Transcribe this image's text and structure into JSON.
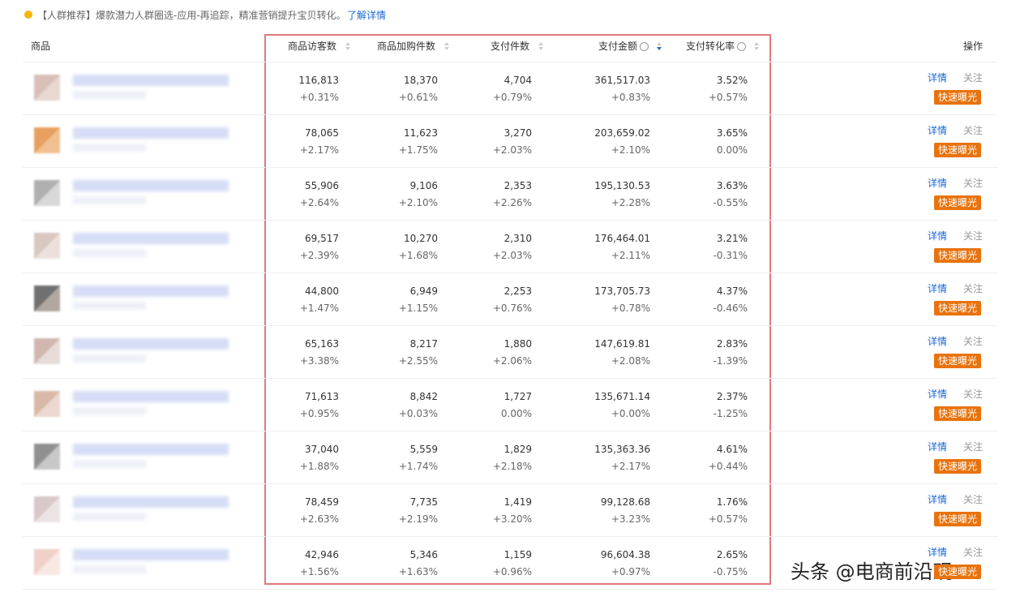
{
  "notice": {
    "text": "【人群推荐】爆款潜力人群圈选-应用-再追踪，精准营销提升宝贝转化。",
    "link": "了解详情"
  },
  "table": {
    "headers": [
      "商品",
      "商品访客数",
      "商品加购件数",
      "支付件数",
      "支付金额",
      "支付转化率",
      "操作"
    ],
    "actions": [
      "详情",
      "关注",
      "快速曝光"
    ],
    "rows": [
      [
        [
          "116,813",
          "+0.31%"
        ],
        [
          "18,370",
          "+0.61%"
        ],
        [
          "4,704",
          "+0.79%"
        ],
        [
          "361,517.03",
          "+0.83%"
        ],
        [
          "3.52%",
          "+0.57%"
        ]
      ],
      [
        [
          "78,065",
          "+2.17%"
        ],
        [
          "11,623",
          "+1.75%"
        ],
        [
          "3,270",
          "+2.03%"
        ],
        [
          "203,659.02",
          "+2.10%"
        ],
        [
          "3.65%",
          "0.00%"
        ]
      ],
      [
        [
          "55,906",
          "+2.64%"
        ],
        [
          "9,106",
          "+2.10%"
        ],
        [
          "2,353",
          "+2.26%"
        ],
        [
          "195,130.53",
          "+2.28%"
        ],
        [
          "3.63%",
          "-0.55%"
        ]
      ],
      [
        [
          "69,517",
          "+2.39%"
        ],
        [
          "10,270",
          "+1.68%"
        ],
        [
          "2,310",
          "+2.03%"
        ],
        [
          "176,464.01",
          "+2.11%"
        ],
        [
          "3.21%",
          "-0.31%"
        ]
      ],
      [
        [
          "44,800",
          "+1.47%"
        ],
        [
          "6,949",
          "+1.15%"
        ],
        [
          "2,253",
          "+0.76%"
        ],
        [
          "173,705.73",
          "+0.78%"
        ],
        [
          "4.37%",
          "-0.46%"
        ]
      ],
      [
        [
          "65,163",
          "+3.38%"
        ],
        [
          "8,217",
          "+2.55%"
        ],
        [
          "1,880",
          "+2.06%"
        ],
        [
          "147,619.81",
          "+2.08%"
        ],
        [
          "2.83%",
          "-1.39%"
        ]
      ],
      [
        [
          "71,613",
          "+0.95%"
        ],
        [
          "8,842",
          "+0.03%"
        ],
        [
          "1,727",
          "0.00%"
        ],
        [
          "135,671.14",
          "+0.00%"
        ],
        [
          "2.37%",
          "-1.25%"
        ]
      ],
      [
        [
          "37,040",
          "+1.88%"
        ],
        [
          "5,559",
          "+1.74%"
        ],
        [
          "1,829",
          "+2.18%"
        ],
        [
          "135,363.36",
          "+2.17%"
        ],
        [
          "4.61%",
          "+0.44%"
        ]
      ],
      [
        [
          "78,459",
          "+2.63%"
        ],
        [
          "7,735",
          "+2.19%"
        ],
        [
          "1,419",
          "+3.20%"
        ],
        [
          "99,128.68",
          "+3.23%"
        ],
        [
          "1.76%",
          "+0.57%"
        ]
      ],
      [
        [
          "42,946",
          "+1.56%"
        ],
        [
          "5,346",
          "+1.63%"
        ],
        [
          "1,159",
          "+0.96%"
        ],
        [
          "96,604.38",
          "+0.97%"
        ],
        [
          "2.65%",
          "-0.75%"
        ]
      ]
    ]
  },
  "watermark": "头条 @电商前沿观"
}
